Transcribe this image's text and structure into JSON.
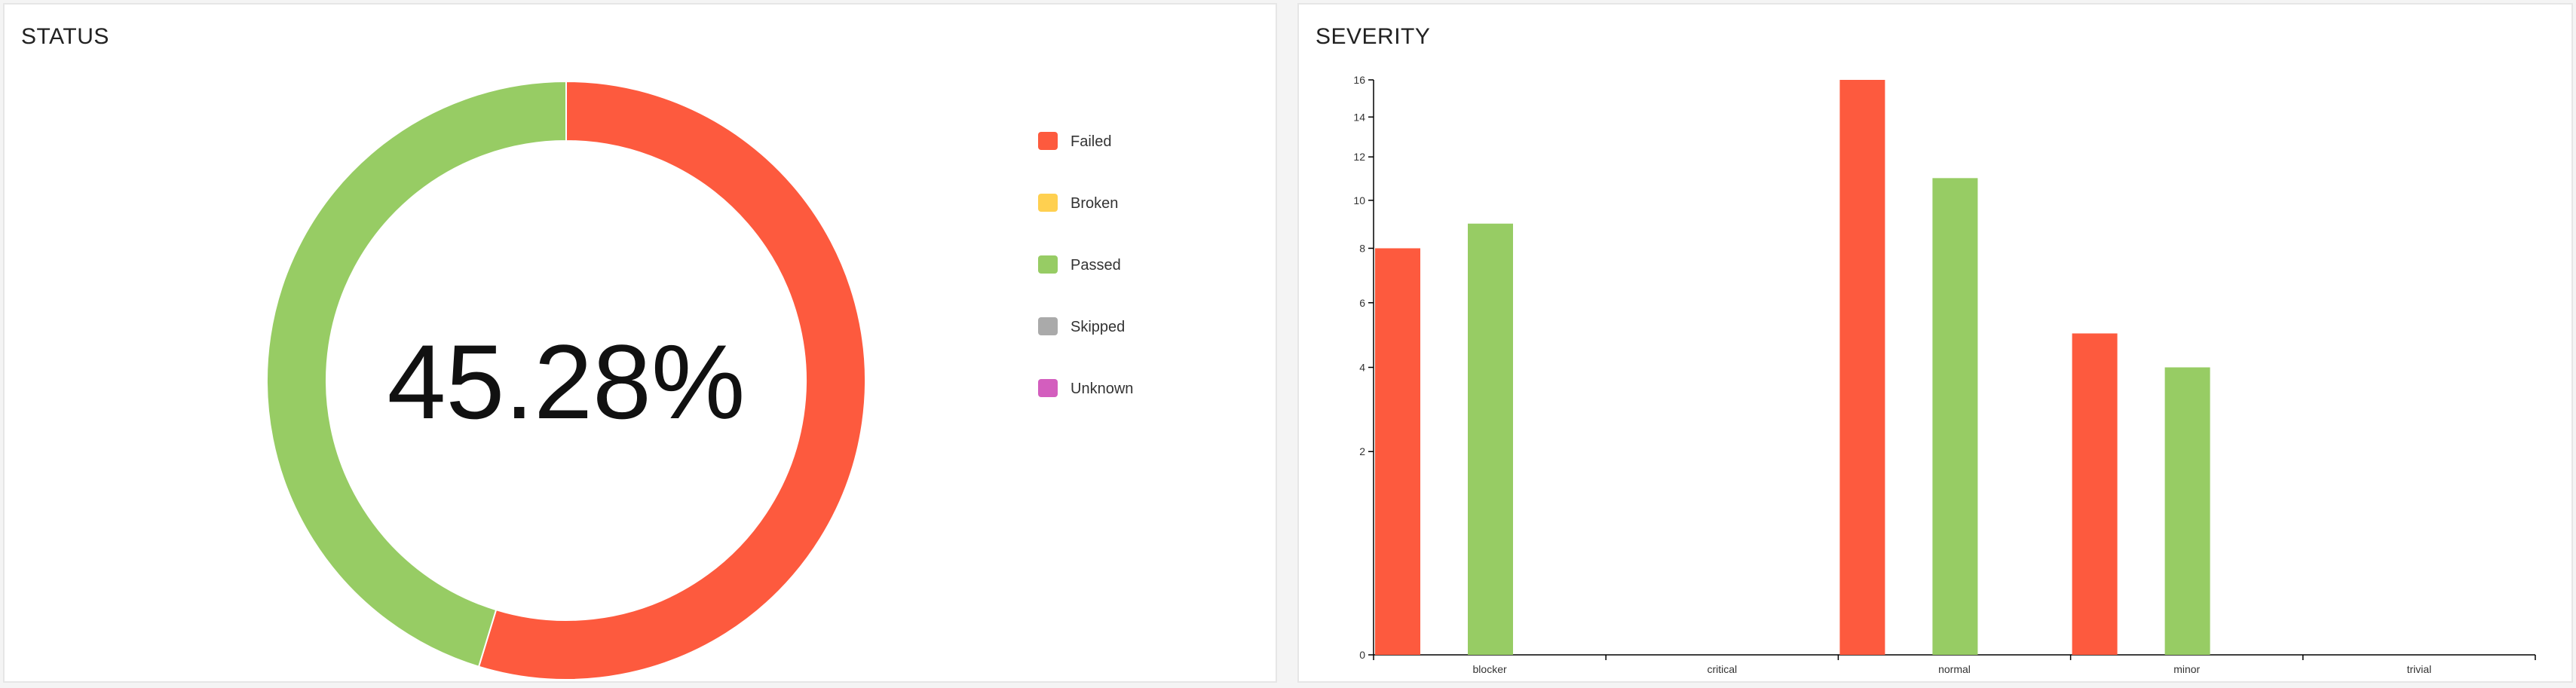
{
  "status": {
    "title": "STATUS",
    "center_label": "45.28%",
    "legend": [
      {
        "label": "Failed",
        "color": "#fd5a3e"
      },
      {
        "label": "Broken",
        "color": "#ffd050"
      },
      {
        "label": "Passed",
        "color": "#97cc64"
      },
      {
        "label": "Skipped",
        "color": "#aaaaaa"
      },
      {
        "label": "Unknown",
        "color": "#d35ebe"
      }
    ]
  },
  "severity": {
    "title": "SEVERITY"
  },
  "chart_data": [
    {
      "type": "pie",
      "title": "STATUS",
      "categories": [
        "Failed",
        "Broken",
        "Passed",
        "Skipped",
        "Unknown"
      ],
      "values": [
        29,
        0,
        24,
        0,
        0
      ],
      "colors": [
        "#fd5a3e",
        "#ffd050",
        "#97cc64",
        "#aaaaaa",
        "#d35ebe"
      ],
      "center_label": "45.28%",
      "legend_position": "right"
    },
    {
      "type": "bar",
      "title": "SEVERITY",
      "categories": [
        "blocker",
        "critical",
        "normal",
        "minor",
        "trivial"
      ],
      "series": [
        {
          "name": "failed",
          "color": "#fd5a3e",
          "values": [
            8,
            0,
            16,
            5,
            0
          ]
        },
        {
          "name": "passed",
          "color": "#97cc64",
          "values": [
            9,
            0,
            11,
            4,
            0
          ]
        }
      ],
      "y_scale": "sqrt",
      "ylim": [
        0,
        16
      ],
      "yticks": [
        0,
        2,
        4,
        6,
        8,
        10,
        12,
        14,
        16
      ]
    }
  ]
}
